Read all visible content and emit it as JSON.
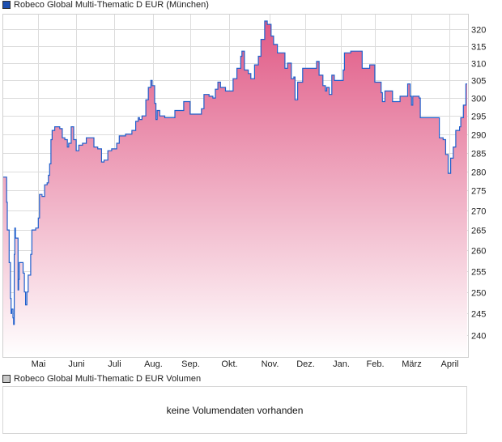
{
  "price_legend": {
    "label": "Robeco Global Multi-Thematic D EUR (München)",
    "color": "#1c4fb0"
  },
  "volume_legend": {
    "label": "Robeco Global Multi-Thematic D EUR Volumen",
    "color": "#c8c8c8"
  },
  "volume_panel": {
    "message": "keine Volumendaten vorhanden"
  },
  "chart_data": {
    "type": "area",
    "title": "Robeco Global Multi-Thematic D EUR (München)",
    "xlabel": "",
    "ylabel": "",
    "y_scale": "log",
    "xlim": [
      0,
      368
    ],
    "ylim": [
      235.1,
      324.6
    ],
    "grid": true,
    "line_color": "#1f5fcc",
    "fill_color_top": "#e05a86",
    "fill_color_bottom": "#ffffff",
    "x_unit": "days since start",
    "x_ticks": [
      {
        "label": "Mai",
        "x": 28
      },
      {
        "label": "Juni",
        "x": 58
      },
      {
        "label": "Juli",
        "x": 88
      },
      {
        "label": "Aug.",
        "x": 119
      },
      {
        "label": "Sep.",
        "x": 148
      },
      {
        "label": "Okt.",
        "x": 179
      },
      {
        "label": "Nov.",
        "x": 211
      },
      {
        "label": "Dez.",
        "x": 239
      },
      {
        "label": "Jan.",
        "x": 267
      },
      {
        "label": "Feb.",
        "x": 294
      },
      {
        "label": "März",
        "x": 323
      },
      {
        "label": "April",
        "x": 353
      }
    ],
    "y_ticks": [
      240,
      245,
      250,
      255,
      260,
      265,
      270,
      275,
      280,
      285,
      290,
      295,
      300,
      305,
      310,
      315,
      320
    ],
    "points": [
      [
        0,
        278.5
      ],
      [
        2,
        278.5
      ],
      [
        3,
        272
      ],
      [
        3.5,
        265
      ],
      [
        5,
        257
      ],
      [
        6,
        248.5
      ],
      [
        6.5,
        245
      ],
      [
        7,
        246
      ],
      [
        8,
        244
      ],
      [
        8.5,
        242.5
      ],
      [
        9,
        259
      ],
      [
        9.5,
        265.5
      ],
      [
        10,
        263
      ],
      [
        12,
        250.5
      ],
      [
        12.5,
        253
      ],
      [
        13,
        257
      ],
      [
        15,
        257
      ],
      [
        16,
        254.5
      ],
      [
        17,
        250
      ],
      [
        18,
        247
      ],
      [
        19,
        250
      ],
      [
        20,
        254
      ],
      [
        22,
        259
      ],
      [
        23,
        265
      ],
      [
        26,
        265.5
      ],
      [
        28,
        268
      ],
      [
        29,
        274
      ],
      [
        30,
        274
      ],
      [
        31,
        273.5
      ],
      [
        33,
        276.5
      ],
      [
        35,
        277
      ],
      [
        36,
        279
      ],
      [
        37,
        282
      ],
      [
        38,
        288.5
      ],
      [
        39,
        291
      ],
      [
        41,
        292
      ],
      [
        45,
        291.5
      ],
      [
        47,
        289
      ],
      [
        49,
        288.5
      ],
      [
        51,
        286.5
      ],
      [
        52,
        287.5
      ],
      [
        54,
        292
      ],
      [
        56,
        288.5
      ],
      [
        58,
        285.5
      ],
      [
        60,
        287
      ],
      [
        63,
        287.5
      ],
      [
        66,
        289
      ],
      [
        69,
        289
      ],
      [
        72,
        286.5
      ],
      [
        75,
        286
      ],
      [
        78,
        282.5
      ],
      [
        80,
        283
      ],
      [
        83,
        285.5
      ],
      [
        86,
        286
      ],
      [
        90,
        287.5
      ],
      [
        92,
        289.5
      ],
      [
        97,
        290
      ],
      [
        102,
        291
      ],
      [
        105,
        293.5
      ],
      [
        107,
        294.5
      ],
      [
        108,
        294
      ],
      [
        110,
        295
      ],
      [
        113,
        299.5
      ],
      [
        115,
        303
      ],
      [
        117,
        305
      ],
      [
        118,
        303.5
      ],
      [
        120,
        298.5
      ],
      [
        121,
        294
      ],
      [
        122,
        296.5
      ],
      [
        124,
        295
      ],
      [
        128,
        294.5
      ],
      [
        132,
        294.5
      ],
      [
        136,
        296.5
      ],
      [
        140,
        296.5
      ],
      [
        143,
        299
      ],
      [
        147,
        299
      ],
      [
        148,
        295.5
      ],
      [
        154,
        295.5
      ],
      [
        157,
        297
      ],
      [
        159,
        301
      ],
      [
        163,
        300.5
      ],
      [
        166,
        300
      ],
      [
        168,
        302.5
      ],
      [
        170,
        304.5
      ],
      [
        172,
        303
      ],
      [
        176,
        302
      ],
      [
        179,
        302
      ],
      [
        182,
        305.5
      ],
      [
        185,
        308.5
      ],
      [
        188,
        312
      ],
      [
        189,
        313.5
      ],
      [
        191,
        308
      ],
      [
        194,
        307
      ],
      [
        196,
        305.5
      ],
      [
        199,
        309.5
      ],
      [
        202,
        312
      ],
      [
        204,
        317
      ],
      [
        207,
        322.5
      ],
      [
        209,
        321.5
      ],
      [
        212,
        318
      ],
      [
        214,
        315.5
      ],
      [
        217,
        313
      ],
      [
        222,
        313
      ],
      [
        223,
        308.5
      ],
      [
        225,
        310
      ],
      [
        228,
        305.5
      ],
      [
        230,
        306
      ],
      [
        231,
        299.5
      ],
      [
        233,
        304.5
      ],
      [
        235,
        304.5
      ],
      [
        237,
        308.5
      ],
      [
        246,
        308.5
      ],
      [
        248,
        310.5
      ],
      [
        250,
        306.5
      ],
      [
        253,
        303.5
      ],
      [
        255,
        302
      ],
      [
        256,
        303
      ],
      [
        258,
        301
      ],
      [
        260,
        306.5
      ],
      [
        262,
        305
      ],
      [
        266,
        305
      ],
      [
        269,
        308
      ],
      [
        270,
        313
      ],
      [
        275,
        313.5
      ],
      [
        282,
        313.5
      ],
      [
        284,
        308.5
      ],
      [
        288,
        308.5
      ],
      [
        290,
        309.5
      ],
      [
        292,
        309.5
      ],
      [
        294,
        304.5
      ],
      [
        297,
        304.5
      ],
      [
        299,
        301.5
      ],
      [
        300,
        299
      ],
      [
        302,
        302
      ],
      [
        307,
        302
      ],
      [
        308,
        299
      ],
      [
        312,
        299
      ],
      [
        314,
        300.5
      ],
      [
        319,
        300.5
      ],
      [
        320,
        304
      ],
      [
        322,
        300.5
      ],
      [
        323,
        298
      ],
      [
        324,
        300.5
      ],
      [
        329,
        300
      ],
      [
        330,
        294.5
      ],
      [
        340,
        294.5
      ],
      [
        345,
        289
      ],
      [
        348,
        288.5
      ],
      [
        350,
        284.5
      ],
      [
        352,
        279.5
      ],
      [
        354,
        283.5
      ],
      [
        356,
        286.5
      ],
      [
        358,
        291
      ],
      [
        361,
        292
      ],
      [
        362,
        294.5
      ],
      [
        364,
        298
      ],
      [
        366,
        304
      ],
      [
        367,
        304
      ]
    ]
  }
}
